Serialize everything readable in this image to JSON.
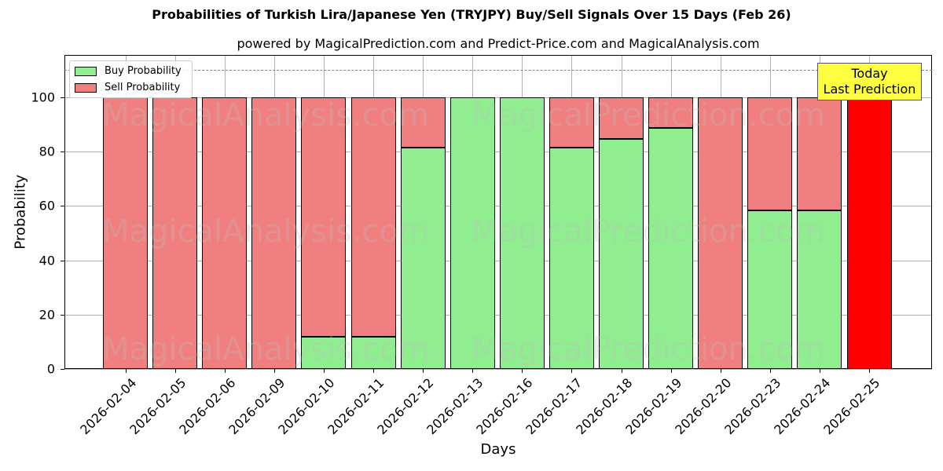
{
  "title": "Probabilities of Turkish Lira/Japanese Yen (TRYJPY) Buy/Sell Signals Over 15 Days (Feb 26)",
  "subtitle": "powered by MagicalPrediction.com and Predict-Price.com and MagicalAnalysis.com",
  "legend": {
    "buy": "Buy Probability",
    "sell": "Sell Probability"
  },
  "annotation": {
    "line1": "Today",
    "line2": "Last Prediction"
  },
  "watermarks": [
    "MagicalAnalysis.com",
    "MagicalPrediction.com"
  ],
  "colors": {
    "buy": "#90ee90",
    "sell": "#f08080",
    "today_sell": "#ff0000",
    "annotation_bg": "#ffff40",
    "refline": "#808080"
  },
  "chart_data": {
    "type": "bar",
    "stacked": true,
    "title": "Probabilities of Turkish Lira/Japanese Yen (TRYJPY) Buy/Sell Signals Over 15 Days (Feb 26)",
    "subtitle": "powered by MagicalPrediction.com and Predict-Price.com and MagicalAnalysis.com",
    "xlabel": "Days",
    "ylabel": "Probability",
    "ylim": [
      0,
      115
    ],
    "yticks": [
      0,
      20,
      40,
      60,
      80,
      100
    ],
    "grid": true,
    "legend_position": "upper left",
    "reference_line": 110,
    "categories": [
      "2026-02-04",
      "2026-02-05",
      "2026-02-06",
      "2026-02-09",
      "2026-02-10",
      "2026-02-11",
      "2026-02-12",
      "2026-02-13",
      "2026-02-16",
      "2026-02-17",
      "2026-02-18",
      "2026-02-19",
      "2026-02-20",
      "2026-02-23",
      "2026-02-24",
      "2026-02-25"
    ],
    "series": [
      {
        "name": "Buy Probability",
        "values": [
          0,
          0,
          0,
          0,
          11.8,
          11.8,
          81.5,
          100,
          100,
          81.5,
          84.8,
          88.6,
          0,
          58.4,
          58.4,
          0
        ]
      },
      {
        "name": "Sell Probability",
        "values": [
          100,
          100,
          100,
          100,
          88.2,
          88.2,
          18.5,
          0,
          0,
          18.5,
          15.2,
          11.4,
          100,
          41.6,
          41.6,
          100
        ]
      }
    ],
    "annotations": [
      {
        "text": "Today\nLast Prediction",
        "x": "2026-02-25"
      }
    ]
  }
}
